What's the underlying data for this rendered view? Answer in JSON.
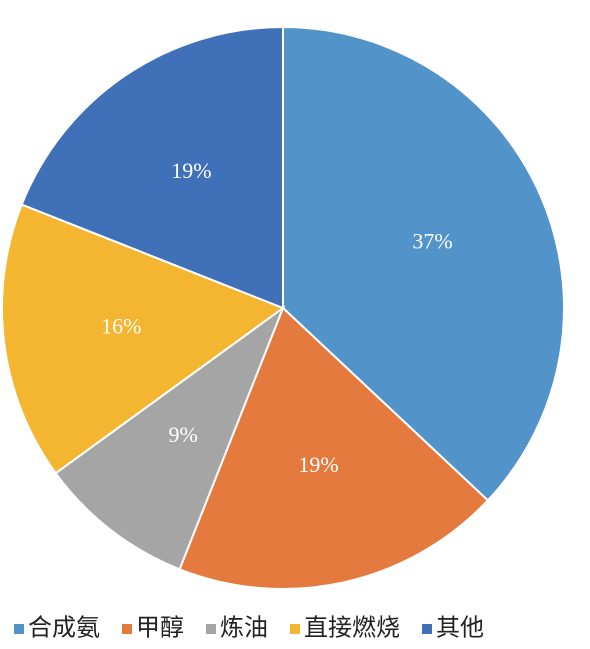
{
  "chart_data": {
    "type": "pie",
    "categories": [
      "合成氨",
      "甲醇",
      "炼油",
      "直接燃烧",
      "其他"
    ],
    "values": [
      37,
      19,
      9,
      16,
      19
    ],
    "value_labels": [
      "37%",
      "19%",
      "9%",
      "16%",
      "19%"
    ],
    "colors": [
      "#5294c9",
      "#e57a3e",
      "#a5a5a5",
      "#f4b531",
      "#3f70b8"
    ],
    "legend": "bottom"
  }
}
